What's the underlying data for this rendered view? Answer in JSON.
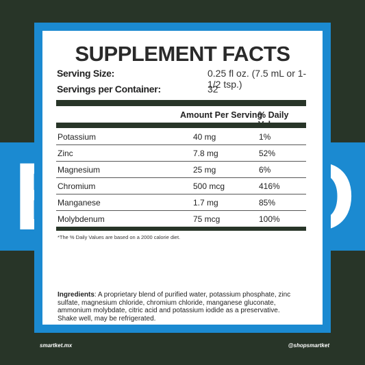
{
  "background_colors": {
    "dark": "#283528",
    "accent": "#1b8ad1"
  },
  "band_letters": {
    "left": "B",
    "right": "O"
  },
  "panel": {
    "title": "SUPPLEMENT FACTS",
    "serving_size_label": "Serving Size:",
    "serving_size_value": "0.25 fl oz. (7.5 mL or 1-1/2 tsp.)",
    "servings_label": "Servings per Container:",
    "servings_value": "32",
    "header_amount": "Amount Per Serving",
    "header_daily": "% Daily Value",
    "rows": [
      {
        "nutrient": "Potassium",
        "amount": "40 mg",
        "daily": "1%"
      },
      {
        "nutrient": "Zinc",
        "amount": "7.8 mg",
        "daily": "52%"
      },
      {
        "nutrient": "Magnesium",
        "amount": "25 mg",
        "daily": "6%"
      },
      {
        "nutrient": "Chromium",
        "amount": "500 mcg",
        "daily": "416%"
      },
      {
        "nutrient": "Manganese",
        "amount": "1.7 mg",
        "daily": "85%"
      },
      {
        "nutrient": "Molybdenum",
        "amount": "75 mcg",
        "daily": "100%"
      }
    ],
    "footnote": "*The % Daily Values are based on a 2000 calorie diet.",
    "ingredients_label": "Ingredients",
    "ingredients_text": ": A proprietary blend of purified water, potassium phosphate, zinc sulfate, magnesium chloride, chromium chloride, manganese gluconate, ammonium molybdate, citric acid and potassium iodide as a preservative.",
    "instructions": "Shake well, may be refrigerated."
  },
  "footer": {
    "left": "smartket.mx",
    "right": "@shopsmartket"
  }
}
